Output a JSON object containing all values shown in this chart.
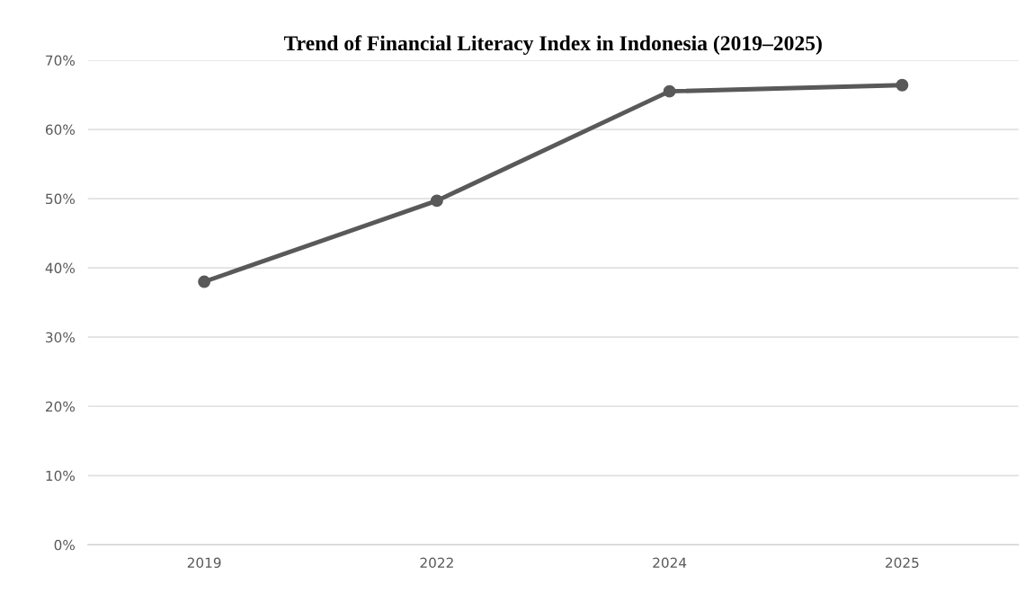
{
  "chart_data": {
    "type": "line",
    "title": "Trend of Financial Literacy Index in Indonesia (2019–2025)",
    "categories": [
      "2019",
      "2022",
      "2024",
      "2025"
    ],
    "series": [
      {
        "color": "#595959",
        "values": [
          38.0,
          49.7,
          65.5,
          66.4
        ]
      }
    ],
    "ylim": [
      0,
      70
    ],
    "yticks": [
      {
        "value": 0,
        "label": "0%"
      },
      {
        "value": 10,
        "label": "10%"
      },
      {
        "value": 20,
        "label": "20%"
      },
      {
        "value": 30,
        "label": "30%"
      },
      {
        "value": 40,
        "label": "40%"
      },
      {
        "value": 50,
        "label": "50%"
      },
      {
        "value": 60,
        "label": "60%"
      },
      {
        "value": 70,
        "label": "70%"
      }
    ],
    "grid": "y",
    "marker": "circle",
    "line_style": "solid"
  }
}
